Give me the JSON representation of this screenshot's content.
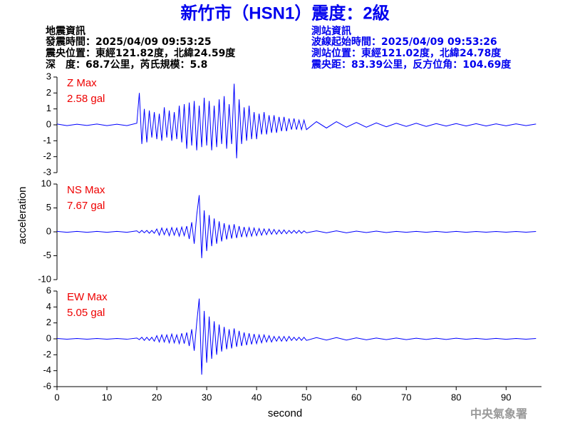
{
  "title": "新竹市（HSN1）震度：2級",
  "info_left": [
    "地震資訊",
    "發震時間：2025/04/09 09:53:25",
    "震央位置：東經121.82度，北緯24.59度",
    "深　度：68.7公里，芮氏規模：5.8"
  ],
  "info_right": [
    "測站資訊",
    "波線起始時間：2025/04/09 09:53:26",
    "測站位置：東經121.02度，北緯24.78度",
    "震央距：83.39公里，反方位角：104.69度"
  ],
  "ylabel": "acceleration",
  "credit": "中央氣象署",
  "chart_data": [
    {
      "type": "line",
      "annotations": [
        "Z Max",
        "2.58 gal"
      ],
      "color": "#0000ff",
      "xlim": [
        0,
        97.1
      ],
      "ylim": [
        -3,
        3
      ],
      "yticks": [
        -3,
        -2,
        -1,
        0,
        1,
        2,
        3
      ],
      "x": [
        0,
        2,
        4,
        6,
        8,
        10,
        12,
        14,
        16,
        16.5,
        17,
        17.5,
        18,
        18.5,
        19,
        19.5,
        20,
        20.5,
        21,
        21.5,
        22,
        22.5,
        23,
        23.5,
        24,
        24.5,
        25,
        25.5,
        26,
        26.5,
        27,
        27.5,
        28,
        28.5,
        29,
        29.5,
        30,
        30.5,
        31,
        31.5,
        32,
        32.5,
        33,
        33.5,
        34,
        34.5,
        35,
        35.5,
        36,
        36.5,
        37,
        37.5,
        38,
        38.5,
        39,
        39.5,
        40,
        40.5,
        41,
        41.5,
        42,
        42.5,
        43,
        43.5,
        44,
        44.5,
        45,
        45.5,
        46,
        46.5,
        47,
        47.5,
        48,
        48.5,
        49,
        49.5,
        50,
        52,
        54,
        56,
        58,
        60,
        62,
        64,
        66,
        68,
        70,
        72,
        74,
        76,
        78,
        80,
        82,
        84,
        86,
        88,
        90,
        92,
        94,
        96
      ],
      "values": [
        0.05,
        -0.05,
        0.04,
        -0.04,
        0.05,
        -0.05,
        0.04,
        -0.05,
        0.1,
        2.0,
        -1.2,
        1.0,
        -1.1,
        0.9,
        -0.8,
        0.8,
        -0.9,
        0.7,
        -1.0,
        1.1,
        -0.8,
        0.9,
        -1.0,
        0.8,
        -0.9,
        1.2,
        -1.1,
        1.3,
        -1.5,
        1.4,
        -1.3,
        1.5,
        -1.6,
        1.2,
        -1.4,
        1.7,
        -1.3,
        1.5,
        -1.6,
        1.2,
        -1.4,
        1.6,
        -1.2,
        1.8,
        -1.5,
        1.3,
        -1.2,
        2.58,
        -2.1,
        1.6,
        -1.2,
        1.1,
        -1.0,
        1.2,
        -0.9,
        0.8,
        -0.9,
        0.7,
        -0.6,
        0.8,
        -0.6,
        0.6,
        -0.5,
        0.6,
        -0.5,
        0.5,
        -0.4,
        0.5,
        -0.4,
        0.4,
        -0.3,
        0.4,
        -0.3,
        0.3,
        -0.3,
        0.3,
        -0.3,
        0.2,
        -0.2,
        0.2,
        -0.15,
        0.15,
        -0.15,
        0.12,
        -0.12,
        0.1,
        -0.1,
        0.1,
        -0.1,
        0.08,
        -0.08,
        0.08,
        -0.07,
        0.07,
        -0.07,
        0.06,
        -0.06,
        0.06,
        -0.05,
        0.05
      ]
    },
    {
      "type": "line",
      "annotations": [
        "NS Max",
        "7.67 gal"
      ],
      "color": "#0000ff",
      "xlim": [
        0,
        97.1
      ],
      "ylim": [
        -10,
        10
      ],
      "yticks": [
        -10,
        -5,
        0,
        5,
        10
      ],
      "x": [
        0,
        2,
        4,
        6,
        8,
        10,
        12,
        14,
        16,
        16.5,
        17,
        17.5,
        18,
        18.5,
        19,
        19.5,
        20,
        20.5,
        21,
        21.5,
        22,
        22.5,
        23,
        23.5,
        24,
        24.5,
        25,
        25.5,
        26,
        26.5,
        27,
        27.5,
        28,
        28.5,
        29,
        29.5,
        30,
        30.5,
        31,
        31.5,
        32,
        32.5,
        33,
        33.5,
        34,
        34.5,
        35,
        35.5,
        36,
        36.5,
        37,
        37.5,
        38,
        38.5,
        39,
        39.5,
        40,
        40.5,
        41,
        41.5,
        42,
        42.5,
        43,
        43.5,
        44,
        44.5,
        45,
        45.5,
        46,
        46.5,
        47,
        47.5,
        48,
        48.5,
        49,
        49.5,
        50,
        52,
        54,
        56,
        58,
        60,
        62,
        64,
        66,
        68,
        70,
        72,
        74,
        76,
        78,
        80,
        82,
        84,
        86,
        88,
        90,
        92,
        94,
        96
      ],
      "values": [
        0.1,
        -0.1,
        0.1,
        -0.1,
        0.1,
        -0.1,
        0.1,
        -0.1,
        0.2,
        -0.2,
        0.3,
        -0.2,
        0.3,
        -0.3,
        0.3,
        -0.3,
        0.6,
        -0.7,
        0.8,
        -0.6,
        0.7,
        -0.8,
        0.9,
        -0.7,
        0.8,
        -0.9,
        1.0,
        -0.8,
        1.2,
        -1.5,
        2.0,
        -2.5,
        3.5,
        7.67,
        -5.5,
        4.5,
        -4.0,
        3.5,
        -3.0,
        2.8,
        -2.5,
        2.2,
        -2.0,
        1.8,
        -1.6,
        1.5,
        -1.4,
        1.6,
        -1.3,
        1.2,
        -1.1,
        1.0,
        -1.0,
        0.9,
        -0.9,
        0.8,
        -0.8,
        0.7,
        -0.7,
        0.6,
        -0.6,
        0.6,
        -0.5,
        0.5,
        -0.5,
        0.4,
        -0.4,
        0.4,
        -0.4,
        0.3,
        -0.3,
        0.3,
        -0.3,
        0.3,
        -0.3,
        0.2,
        -0.2,
        0.2,
        -0.2,
        0.2,
        -0.2,
        0.15,
        -0.15,
        0.15,
        -0.15,
        0.1,
        -0.1,
        0.1,
        -0.1,
        0.1,
        -0.1,
        0.1,
        -0.1,
        0.08,
        -0.08,
        0.08,
        -0.08,
        0.08,
        -0.08,
        0.08
      ]
    },
    {
      "type": "line",
      "annotations": [
        "EW Max",
        "5.05 gal"
      ],
      "color": "#0000ff",
      "xlabel": "second",
      "xlim": [
        0,
        97.1
      ],
      "ylim": [
        -6,
        6
      ],
      "yticks": [
        -6,
        -4,
        -2,
        0,
        2,
        4,
        6
      ],
      "xticks": [
        0,
        10,
        20,
        30,
        40,
        50,
        60,
        70,
        80,
        90
      ],
      "x": [
        0,
        2,
        4,
        6,
        8,
        10,
        12,
        14,
        16,
        16.5,
        17,
        17.5,
        18,
        18.5,
        19,
        19.5,
        20,
        20.5,
        21,
        21.5,
        22,
        22.5,
        23,
        23.5,
        24,
        24.5,
        25,
        25.5,
        26,
        26.5,
        27,
        27.5,
        28,
        28.5,
        29,
        29.5,
        30,
        30.5,
        31,
        31.5,
        32,
        32.5,
        33,
        33.5,
        34,
        34.5,
        35,
        35.5,
        36,
        36.5,
        37,
        37.5,
        38,
        38.5,
        39,
        39.5,
        40,
        40.5,
        41,
        41.5,
        42,
        42.5,
        43,
        43.5,
        44,
        44.5,
        45,
        45.5,
        46,
        46.5,
        47,
        47.5,
        48,
        48.5,
        49,
        49.5,
        50,
        52,
        54,
        56,
        58,
        60,
        62,
        64,
        66,
        68,
        70,
        72,
        74,
        76,
        78,
        80,
        82,
        84,
        86,
        88,
        90,
        92,
        94,
        96
      ],
      "values": [
        0.05,
        -0.05,
        0.05,
        -0.05,
        0.05,
        -0.05,
        0.05,
        -0.05,
        0.1,
        -0.1,
        0.2,
        -0.2,
        0.2,
        -0.2,
        0.2,
        -0.3,
        0.4,
        -0.4,
        0.5,
        -0.4,
        0.5,
        -0.5,
        0.6,
        -0.5,
        0.5,
        -0.6,
        0.7,
        -0.6,
        0.8,
        -0.9,
        1.2,
        -1.5,
        2.0,
        5.05,
        -4.5,
        3.5,
        -3.0,
        2.8,
        -2.5,
        2.2,
        -2.0,
        1.8,
        -1.6,
        1.5,
        -1.3,
        1.2,
        -1.2,
        1.3,
        -1.0,
        1.0,
        -0.9,
        0.8,
        -0.8,
        0.7,
        -0.7,
        0.6,
        -0.6,
        0.5,
        -0.5,
        0.5,
        -0.4,
        0.4,
        -0.4,
        0.3,
        -0.3,
        0.3,
        -0.3,
        0.3,
        -0.3,
        0.3,
        -0.2,
        0.2,
        -0.2,
        0.2,
        -0.2,
        0.2,
        -0.2,
        0.15,
        -0.15,
        0.15,
        -0.15,
        0.12,
        -0.12,
        0.1,
        -0.1,
        0.1,
        -0.1,
        0.08,
        -0.08,
        0.08,
        -0.08,
        0.08,
        -0.06,
        0.06,
        -0.06,
        0.06,
        -0.06,
        0.05,
        -0.05,
        0.05
      ]
    }
  ]
}
